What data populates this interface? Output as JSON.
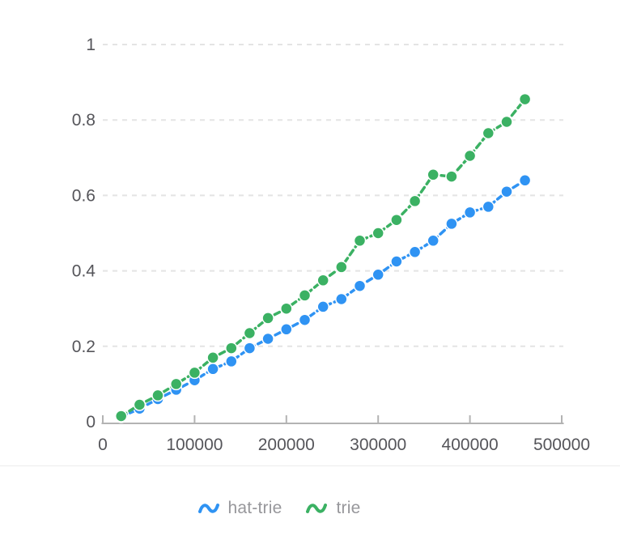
{
  "chart_data": {
    "type": "line",
    "title": "",
    "xlabel": "",
    "ylabel": "",
    "x": [
      20000,
      40000,
      60000,
      80000,
      100000,
      120000,
      140000,
      160000,
      180000,
      200000,
      220000,
      240000,
      260000,
      280000,
      300000,
      320000,
      340000,
      360000,
      380000,
      400000,
      420000,
      440000,
      460000
    ],
    "series": [
      {
        "name": "hat-trie",
        "color": "#2f93f3",
        "values": [
          0.013,
          0.035,
          0.06,
          0.085,
          0.11,
          0.14,
          0.16,
          0.195,
          0.22,
          0.245,
          0.27,
          0.305,
          0.325,
          0.36,
          0.39,
          0.425,
          0.45,
          0.48,
          0.525,
          0.555,
          0.57,
          0.61,
          0.64
        ]
      },
      {
        "name": "trie",
        "color": "#3bb163",
        "values": [
          0.015,
          0.045,
          0.07,
          0.1,
          0.13,
          0.17,
          0.195,
          0.235,
          0.275,
          0.3,
          0.335,
          0.375,
          0.41,
          0.48,
          0.5,
          0.535,
          0.585,
          0.655,
          0.65,
          0.705,
          0.765,
          0.795,
          0.855
        ]
      }
    ],
    "xlim": [
      0,
      500000
    ],
    "ylim": [
      0,
      1
    ],
    "x_tick_values": [
      0,
      100000,
      200000,
      300000,
      400000,
      500000
    ],
    "x_tick_labels": [
      "0",
      "100000",
      "200000",
      "300000",
      "400000",
      "500000"
    ],
    "y_tick_values": [
      0,
      0.2,
      0.4,
      0.6,
      0.8,
      1
    ],
    "y_tick_labels": [
      "0",
      "0.2",
      "0.4",
      "0.6",
      "0.8",
      "1"
    ],
    "grid": "horizontal dashed, no gridline at 0",
    "legend_position": "bottom center",
    "line_style": "dashed lines with filled circular markers"
  },
  "legend": {
    "items": [
      {
        "label": "hat-trie",
        "color": "#2f93f3",
        "icon": "wave-icon"
      },
      {
        "label": "trie",
        "color": "#3bb163",
        "icon": "wave-icon"
      }
    ]
  },
  "colors": {
    "background": "#ffffff",
    "gridline": "#e4e4e4",
    "axis": "#b3b3b3",
    "tick_label": "#55555a",
    "legend_text": "#97979b",
    "divider": "#ececec",
    "marker_border": "#ffffff"
  }
}
